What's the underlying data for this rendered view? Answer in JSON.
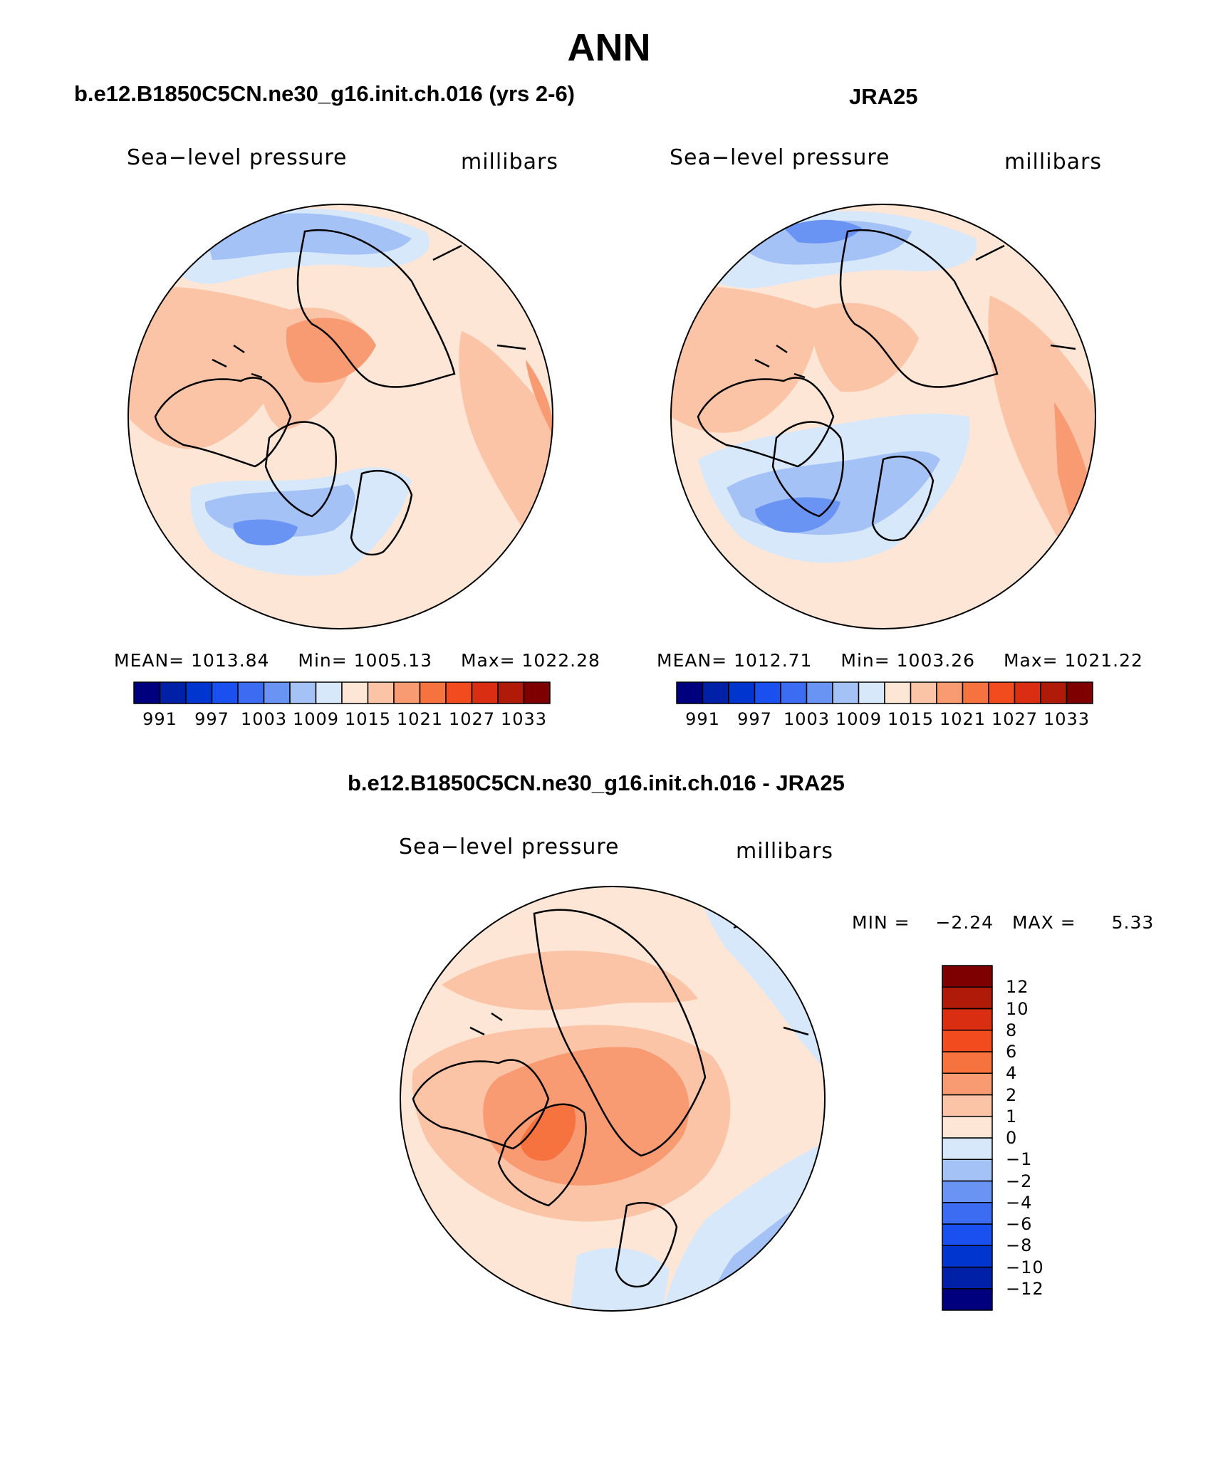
{
  "figure_title": "ANN",
  "top_left": {
    "title": "b.e12.B1850C5CN.ne30_g16.init.ch.016 (yrs 2-6)",
    "left_string": "Sea−level pressure",
    "right_string": "millibars",
    "mean_label": "MEAN=",
    "mean_value": "1013.84",
    "min_label": "Min=",
    "min_value": "1005.13",
    "max_label": "Max=",
    "max_value": "1022.28"
  },
  "top_right": {
    "title": "JRA25",
    "left_string": "Sea−level pressure",
    "right_string": "millibars",
    "mean_label": "MEAN=",
    "mean_value": "1012.71",
    "min_label": "Min=",
    "min_value": "1003.26",
    "max_label": "Max=",
    "max_value": "1021.22"
  },
  "bottom": {
    "title": "b.e12.B1850C5CN.ne30_g16.init.ch.016 - JRA25",
    "left_string": "Sea−level pressure",
    "right_string": "millibars",
    "min_label": "MIN =",
    "min_value": "−2.24",
    "max_label": "MAX =",
    "max_value": "5.33"
  },
  "colorbar_abs": {
    "colors": [
      "#00007f",
      "#0020a8",
      "#0036d0",
      "#1a50f0",
      "#3c6cf2",
      "#6a94f3",
      "#a4c2f6",
      "#d8e8fb",
      "#fde6d6",
      "#fcc4a6",
      "#f89a72",
      "#f6733f",
      "#f24b1e",
      "#d92e12",
      "#b01a08",
      "#7e0000"
    ],
    "tick_labels": [
      "991",
      "997",
      "1003",
      "1009",
      "1015",
      "1021",
      "1027",
      "1033"
    ]
  },
  "colorbar_diff": {
    "colors": [
      "#00007f",
      "#0020a8",
      "#0036d0",
      "#1a50f0",
      "#3c6cf2",
      "#6a94f3",
      "#a4c2f6",
      "#d8e8fb",
      "#fde6d6",
      "#fcc4a6",
      "#f89a72",
      "#f6733f",
      "#f24b1e",
      "#d92e12",
      "#b01a08",
      "#7e0000"
    ],
    "tick_labels": [
      "−12",
      "−10",
      "−8",
      "−6",
      "−4",
      "−2",
      "−1",
      "0",
      "1",
      "2",
      "4",
      "6",
      "8",
      "10",
      "12"
    ]
  },
  "palette": {
    "dark_blue": "#6a94f3",
    "mid_blue": "#a4c2f6",
    "light_blue": "#d8e8fb",
    "light_red": "#fde6d6",
    "mid_red": "#fcc4a6",
    "red": "#f89a72",
    "deep_red": "#f6733f",
    "coast": "#000000"
  }
}
